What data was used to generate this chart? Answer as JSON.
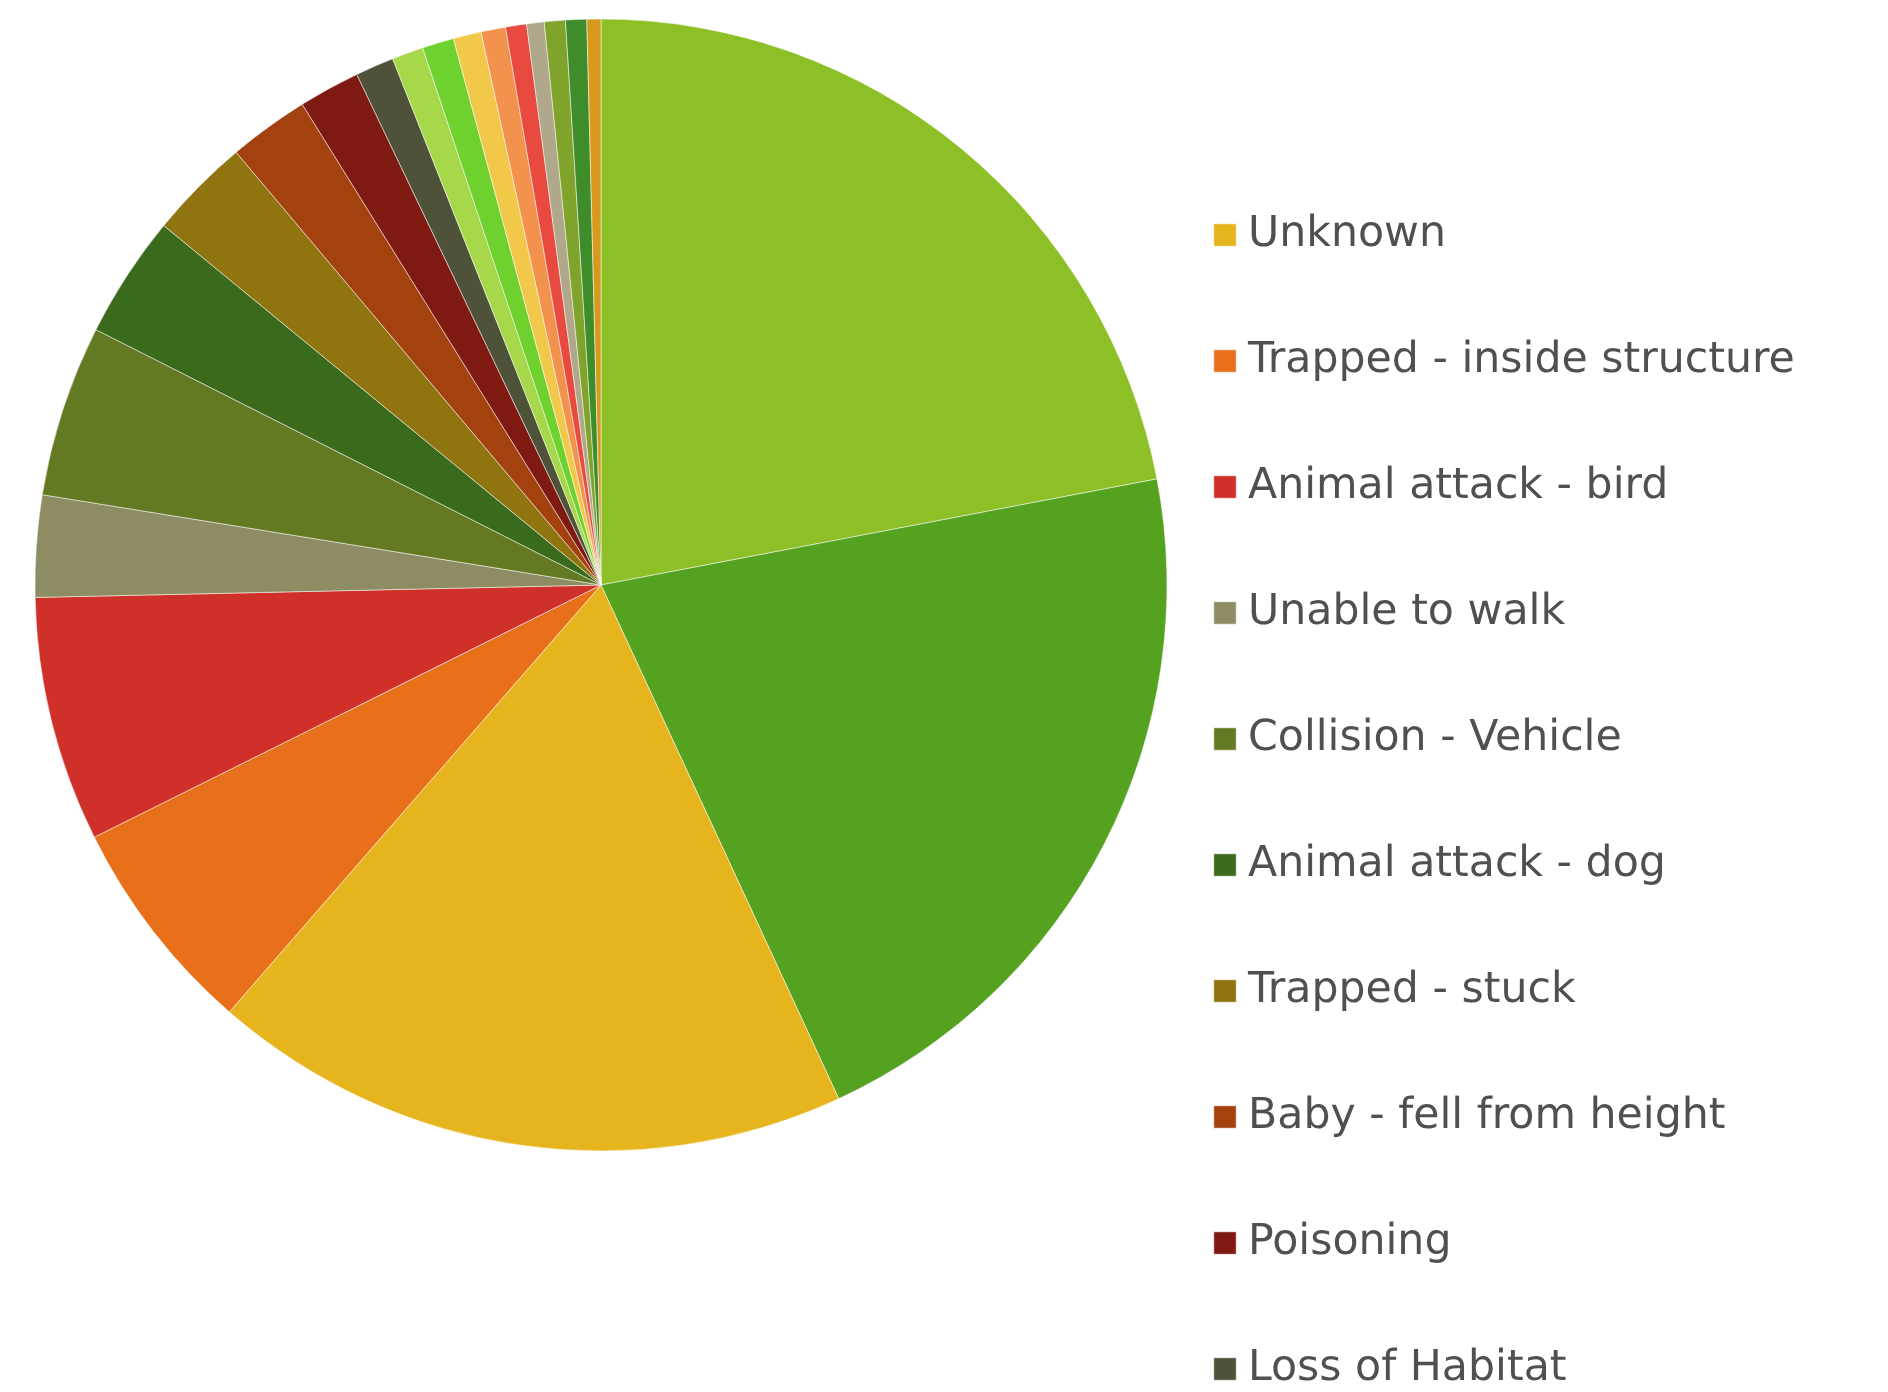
{
  "chart_data": {
    "type": "pie",
    "legend": "right",
    "categories": [
      null,
      null,
      "Unknown",
      "Trapped - inside structure",
      "Animal attack - bird",
      "Unable to walk",
      "Collision - Vehicle",
      "Animal attack - dog",
      "Trapped - stuck",
      "Baby - fell from height",
      "Poisoning",
      "Loss of Habitat",
      null,
      null,
      null,
      null,
      null,
      null,
      null,
      null,
      null
    ],
    "values": [
      22,
      21.1,
      18.3,
      6.25,
      7.0,
      2.9,
      4.9,
      3.5,
      2.9,
      2.3,
      1.75,
      1.1,
      0.9,
      0.9,
      0.8,
      0.7,
      0.6,
      0.5,
      0.6,
      0.6,
      0.4
    ],
    "colors": [
      "#8dc026",
      "#55a221",
      "#e6b51e",
      "#e8701a",
      "#d0302a",
      "#8e8c62",
      "#637a22",
      "#3a6a1c",
      "#8f7410",
      "#a3420f",
      "#7e1a12",
      "#4d5238",
      "#a6d84a",
      "#6fd12e",
      "#f2c84a",
      "#f2924c",
      "#e84a3f",
      "#b0a88a",
      "#7fa32b",
      "#3f8c2a",
      "#d89a1c"
    ]
  }
}
